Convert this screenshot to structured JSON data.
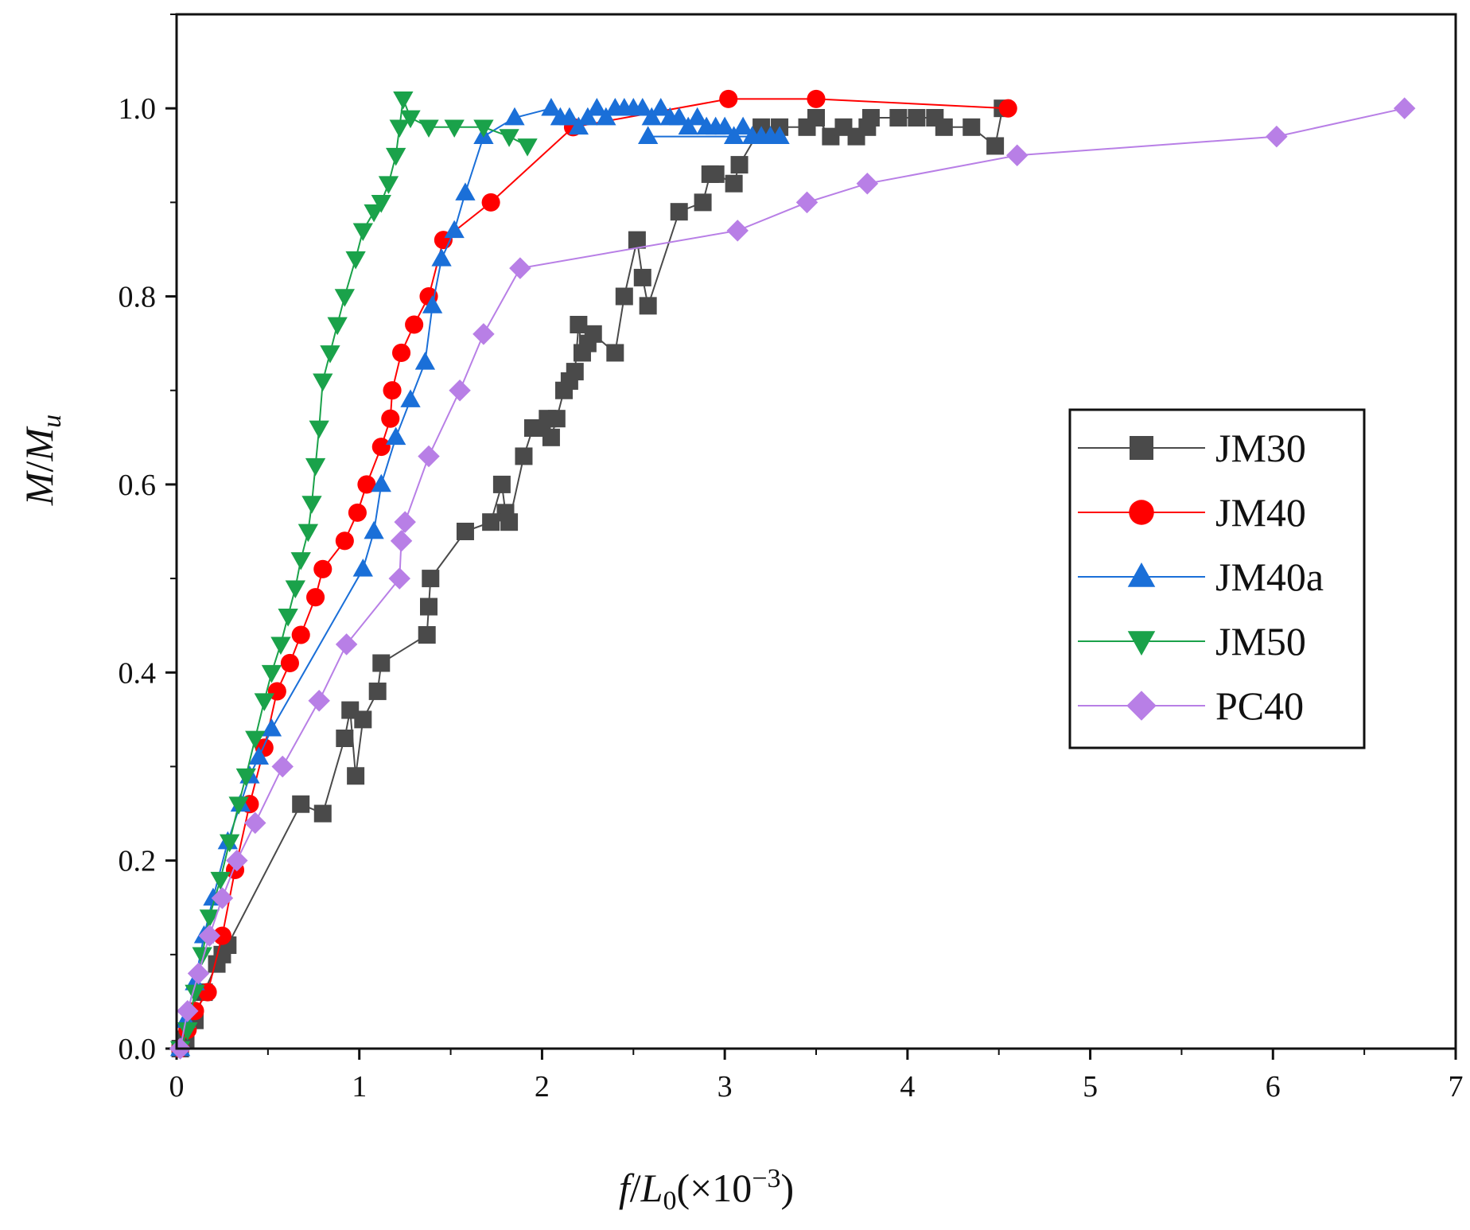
{
  "chart_data": {
    "type": "line",
    "title": "",
    "xlabel": {
      "f": "f",
      "slash": "/",
      "L": "L",
      "sub": "0",
      "rest": "(×10",
      "sup": "−3",
      "close": ")"
    },
    "ylabel": {
      "M": "M",
      "slash": "/",
      "M2": "M",
      "sub": "u"
    },
    "xlim": [
      0,
      7
    ],
    "ylim": [
      0,
      1.1
    ],
    "xticks": [
      0,
      1,
      2,
      3,
      4,
      5,
      6,
      7
    ],
    "xtick_labels": [
      "0",
      "1",
      "2",
      "3",
      "4",
      "5",
      "6",
      "7"
    ],
    "yticks": [
      0.0,
      0.2,
      0.4,
      0.6,
      0.8,
      1.0
    ],
    "ytick_labels": [
      "0.0",
      "0.2",
      "0.4",
      "0.6",
      "0.8",
      "1.0"
    ],
    "legend_position": "center-right",
    "series": [
      {
        "name": "JM30",
        "color": "#4a4a4a",
        "marker": "square",
        "x": [
          0.02,
          0.05,
          0.1,
          0.15,
          0.22,
          0.25,
          0.28,
          0.68,
          0.8,
          0.92,
          0.95,
          0.98,
          1.02,
          1.1,
          1.12,
          1.37,
          1.38,
          1.39,
          1.58,
          1.72,
          1.78,
          1.8,
          1.82,
          1.9,
          1.95,
          2.0,
          2.03,
          2.05,
          2.08,
          2.12,
          2.15,
          2.18,
          2.2,
          2.22,
          2.25,
          2.28,
          2.4,
          2.45,
          2.52,
          2.55,
          2.58,
          2.75,
          2.88,
          2.92,
          2.95,
          3.05,
          3.08,
          3.2,
          3.3,
          3.45,
          3.5,
          3.58,
          3.65,
          3.72,
          3.78,
          3.8,
          3.95,
          4.05,
          4.15,
          4.2,
          4.35,
          4.48,
          4.52
        ],
        "y": [
          0.0,
          0.01,
          0.03,
          0.06,
          0.09,
          0.1,
          0.11,
          0.26,
          0.25,
          0.33,
          0.36,
          0.29,
          0.35,
          0.38,
          0.41,
          0.44,
          0.47,
          0.5,
          0.55,
          0.56,
          0.6,
          0.57,
          0.56,
          0.63,
          0.66,
          0.66,
          0.67,
          0.65,
          0.67,
          0.7,
          0.71,
          0.72,
          0.77,
          0.74,
          0.75,
          0.76,
          0.74,
          0.8,
          0.86,
          0.82,
          0.79,
          0.89,
          0.9,
          0.93,
          0.93,
          0.92,
          0.94,
          0.98,
          0.98,
          0.98,
          0.99,
          0.97,
          0.98,
          0.97,
          0.98,
          0.99,
          0.99,
          0.99,
          0.99,
          0.98,
          0.98,
          0.96,
          1.0
        ]
      },
      {
        "name": "JM40",
        "color": "#ff0000",
        "marker": "circle",
        "x": [
          0.02,
          0.06,
          0.1,
          0.17,
          0.25,
          0.32,
          0.4,
          0.48,
          0.55,
          0.62,
          0.68,
          0.76,
          0.8,
          0.92,
          0.99,
          1.04,
          1.12,
          1.17,
          1.18,
          1.23,
          1.3,
          1.38,
          1.46,
          1.72,
          2.17,
          3.02,
          3.5,
          4.55
        ],
        "y": [
          0.0,
          0.02,
          0.04,
          0.06,
          0.12,
          0.19,
          0.26,
          0.32,
          0.38,
          0.41,
          0.44,
          0.48,
          0.51,
          0.54,
          0.57,
          0.6,
          0.64,
          0.67,
          0.7,
          0.74,
          0.77,
          0.8,
          0.86,
          0.9,
          0.98,
          1.01,
          1.01,
          1.0
        ],
        "label_y": []
      },
      {
        "name": "JM40a",
        "color": "#1a6fd8",
        "marker": "triangle-up",
        "x": [
          0.02,
          0.05,
          0.1,
          0.15,
          0.2,
          0.28,
          0.35,
          0.4,
          0.45,
          0.52,
          1.02,
          1.08,
          1.12,
          1.2,
          1.28,
          1.36,
          1.4,
          1.45,
          1.52,
          1.58,
          1.68,
          1.85,
          2.05,
          2.1,
          2.15,
          2.2,
          2.25,
          2.3,
          2.35,
          2.4,
          2.45,
          2.5,
          2.55,
          2.6,
          2.65,
          2.7,
          2.75,
          2.8,
          2.85,
          2.9,
          2.95,
          3.0,
          3.05,
          3.1,
          3.15,
          3.2,
          3.25,
          3.3,
          2.58
        ],
        "y": [
          0.0,
          0.03,
          0.07,
          0.12,
          0.16,
          0.22,
          0.26,
          0.29,
          0.31,
          0.34,
          0.51,
          0.55,
          0.6,
          0.65,
          0.69,
          0.73,
          0.79,
          0.84,
          0.87,
          0.91,
          0.97,
          0.99,
          1.0,
          0.99,
          0.99,
          0.98,
          0.99,
          1.0,
          0.99,
          1.0,
          1.0,
          1.0,
          1.0,
          0.99,
          1.0,
          0.99,
          0.99,
          0.98,
          0.99,
          0.98,
          0.98,
          0.98,
          0.97,
          0.98,
          0.97,
          0.97,
          0.97,
          0.97,
          0.97
        ]
      },
      {
        "name": "JM50",
        "color": "#1aa24a",
        "marker": "triangle-down",
        "x": [
          0.02,
          0.06,
          0.1,
          0.14,
          0.18,
          0.24,
          0.29,
          0.34,
          0.38,
          0.43,
          0.48,
          0.52,
          0.57,
          0.61,
          0.65,
          0.68,
          0.72,
          0.74,
          0.76,
          0.78,
          0.8,
          0.84,
          0.88,
          0.92,
          0.98,
          1.02,
          1.08,
          1.12,
          1.16,
          1.2,
          1.22,
          1.24,
          1.28,
          1.38,
          1.52,
          1.68,
          1.82,
          1.92
        ],
        "y": [
          0.0,
          0.02,
          0.06,
          0.1,
          0.14,
          0.18,
          0.22,
          0.26,
          0.29,
          0.33,
          0.37,
          0.4,
          0.43,
          0.46,
          0.49,
          0.52,
          0.55,
          0.58,
          0.62,
          0.66,
          0.71,
          0.74,
          0.77,
          0.8,
          0.84,
          0.87,
          0.89,
          0.9,
          0.92,
          0.95,
          0.98,
          1.01,
          0.99,
          0.98,
          0.98,
          0.98,
          0.97,
          0.96
        ]
      },
      {
        "name": "PC40",
        "color": "#b87fe6",
        "marker": "diamond",
        "x": [
          0.02,
          0.06,
          0.12,
          0.18,
          0.25,
          0.33,
          0.43,
          0.58,
          0.78,
          0.93,
          1.22,
          1.23,
          1.25,
          1.38,
          1.55,
          1.68,
          1.88,
          3.07,
          3.45,
          3.78,
          4.6,
          6.02,
          6.72
        ],
        "y": [
          0.0,
          0.04,
          0.08,
          0.12,
          0.16,
          0.2,
          0.24,
          0.3,
          0.37,
          0.43,
          0.5,
          0.54,
          0.56,
          0.63,
          0.7,
          0.76,
          0.83,
          0.87,
          0.9,
          0.92,
          0.95,
          0.97,
          1.0
        ]
      }
    ]
  }
}
